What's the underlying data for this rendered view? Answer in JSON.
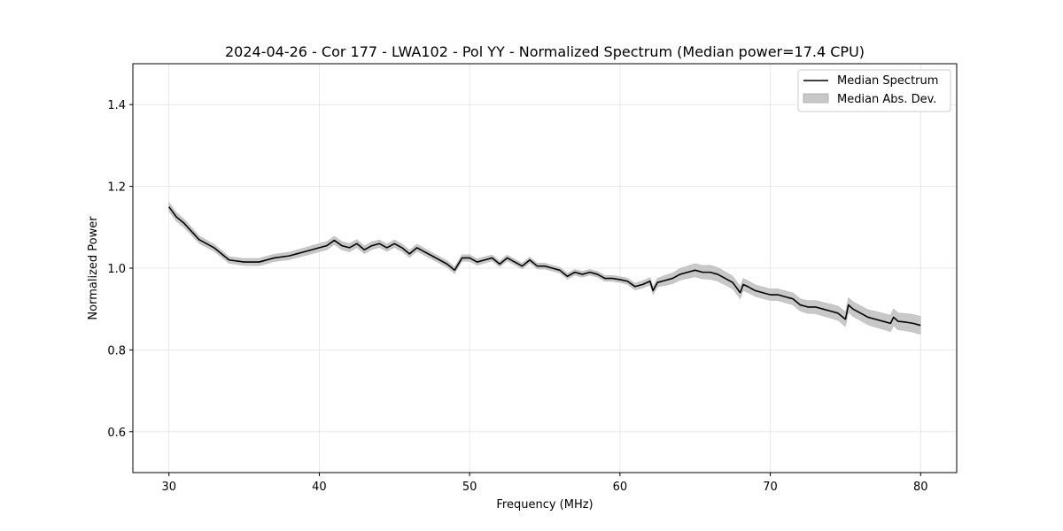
{
  "chart_data": {
    "type": "line",
    "title": "2024-04-26 - Cor 177 - LWA102 - Pol YY - Normalized Spectrum (Median power=17.4 CPU)",
    "xlabel": "Frequency (MHz)",
    "ylabel": "Normalized Power",
    "xlim": [
      27.6,
      82.4
    ],
    "ylim": [
      0.5,
      1.5
    ],
    "xticks": [
      30,
      40,
      50,
      60,
      70,
      80
    ],
    "yticks": [
      0.6,
      0.8,
      1.0,
      1.2,
      1.4
    ],
    "xtick_labels": [
      "30",
      "40",
      "50",
      "60",
      "70",
      "80"
    ],
    "ytick_labels": [
      "0.6",
      "0.8",
      "1.0",
      "1.2",
      "1.4"
    ],
    "grid": true,
    "legend": {
      "position": "top-right",
      "entries": [
        "Median Spectrum",
        "Median Abs. Dev."
      ]
    },
    "series": [
      {
        "name": "Median Spectrum",
        "color": "#000000",
        "x": [
          30,
          30.5,
          31,
          31.5,
          32,
          32.5,
          33,
          34,
          35,
          36,
          37,
          38,
          38.5,
          39,
          39.5,
          40,
          40.5,
          41,
          41.5,
          42,
          42.5,
          43,
          43.5,
          44,
          44.5,
          45,
          45.5,
          46,
          46.5,
          47,
          47.5,
          48,
          48.5,
          49,
          49.5,
          50,
          50.5,
          51,
          51.5,
          52,
          52.5,
          53,
          53.5,
          54,
          54.5,
          55,
          55.5,
          56,
          56.5,
          57,
          57.5,
          58,
          58.5,
          59,
          59.5,
          60,
          60.5,
          61,
          61.5,
          62,
          62.2,
          62.5,
          63,
          63.5,
          64,
          64.5,
          65,
          65.5,
          66,
          66.5,
          67,
          67.5,
          68,
          68.2,
          68.5,
          69,
          69.5,
          70,
          70.5,
          71,
          71.5,
          72,
          72.5,
          73,
          73.5,
          74,
          74.5,
          75,
          75.2,
          75.5,
          76,
          76.5,
          77,
          77.5,
          78,
          78.2,
          78.5,
          79,
          79.5,
          80
        ],
        "values": [
          1.15,
          1.125,
          1.11,
          1.09,
          1.07,
          1.06,
          1.05,
          1.02,
          1.015,
          1.015,
          1.025,
          1.03,
          1.035,
          1.04,
          1.045,
          1.05,
          1.055,
          1.068,
          1.055,
          1.05,
          1.06,
          1.045,
          1.055,
          1.06,
          1.05,
          1.06,
          1.05,
          1.035,
          1.05,
          1.04,
          1.03,
          1.02,
          1.01,
          0.995,
          1.025,
          1.025,
          1.015,
          1.02,
          1.025,
          1.01,
          1.025,
          1.015,
          1.005,
          1.02,
          1.005,
          1.005,
          1.0,
          0.995,
          0.98,
          0.99,
          0.985,
          0.99,
          0.985,
          0.975,
          0.975,
          0.972,
          0.968,
          0.955,
          0.96,
          0.968,
          0.945,
          0.965,
          0.97,
          0.975,
          0.985,
          0.99,
          0.995,
          0.99,
          0.99,
          0.985,
          0.975,
          0.965,
          0.94,
          0.96,
          0.955,
          0.945,
          0.94,
          0.935,
          0.935,
          0.93,
          0.925,
          0.91,
          0.905,
          0.905,
          0.9,
          0.895,
          0.89,
          0.875,
          0.91,
          0.9,
          0.89,
          0.88,
          0.875,
          0.87,
          0.865,
          0.88,
          0.87,
          0.868,
          0.865,
          0.86
        ]
      },
      {
        "name": "Median Abs. Dev.",
        "color": "#c8c8c8",
        "x": [
          30,
          32,
          34,
          36,
          38,
          40,
          42,
          44,
          46,
          48,
          50,
          52,
          54,
          56,
          58,
          60,
          62,
          63,
          64,
          65,
          66,
          67,
          68,
          69,
          70,
          72,
          74,
          76,
          78,
          80
        ],
        "values": [
          0.011,
          0.009,
          0.008,
          0.009,
          0.009,
          0.01,
          0.01,
          0.009,
          0.009,
          0.008,
          0.008,
          0.007,
          0.007,
          0.007,
          0.007,
          0.007,
          0.009,
          0.012,
          0.014,
          0.016,
          0.017,
          0.016,
          0.015,
          0.014,
          0.014,
          0.015,
          0.017,
          0.018,
          0.02,
          0.022
        ]
      }
    ]
  }
}
